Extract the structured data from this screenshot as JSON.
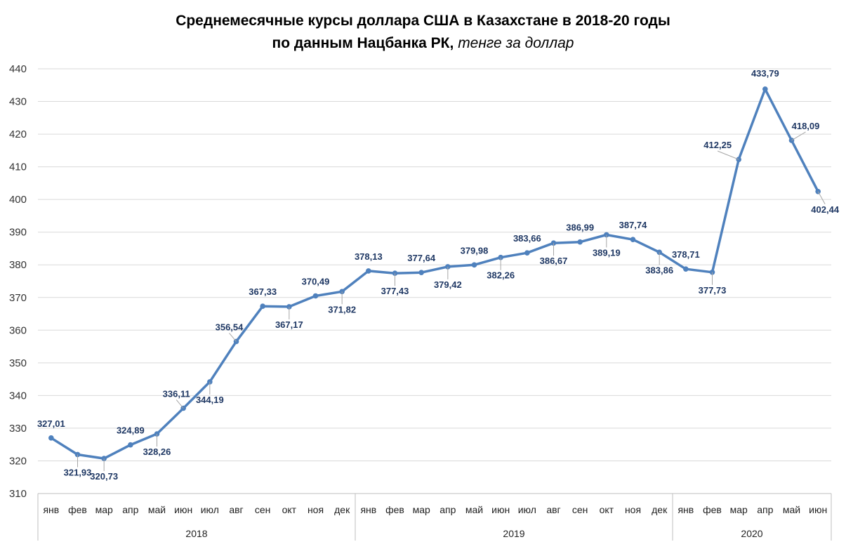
{
  "chart_data": {
    "type": "line",
    "title_line1": "Среднемесячные курсы доллара США в Казахстане в 2018-20 годы",
    "title_line2_bold": "по данным Нацбанка РК,",
    "title_line2_italic": "тенге за доллар",
    "ylim": [
      310,
      440
    ],
    "yticks": [
      "310",
      "320",
      "330",
      "340",
      "350",
      "360",
      "370",
      "380",
      "390",
      "400",
      "410",
      "420",
      "430",
      "440"
    ],
    "grid": true,
    "line_color": "#4f81bd",
    "label_color": "#1f3864",
    "categories": [
      "янв",
      "фев",
      "мар",
      "апр",
      "май",
      "июн",
      "июл",
      "авг",
      "сен",
      "окт",
      "ноя",
      "дек",
      "янв",
      "фев",
      "мар",
      "апр",
      "май",
      "июн",
      "июл",
      "авг",
      "сен",
      "окт",
      "ноя",
      "дек",
      "янв",
      "фев",
      "мар",
      "апр",
      "май",
      "июн"
    ],
    "groups": [
      {
        "name": "2018",
        "count": 12
      },
      {
        "name": "2019",
        "count": 12
      },
      {
        "name": "2020",
        "count": 6
      }
    ],
    "series": [
      {
        "values": [
          327.01,
          321.93,
          320.73,
          324.89,
          328.26,
          336.11,
          344.19,
          356.54,
          367.33,
          367.17,
          370.49,
          371.82,
          378.13,
          377.43,
          377.64,
          379.42,
          379.98,
          382.26,
          383.66,
          386.67,
          386.99,
          389.19,
          387.74,
          383.86,
          378.71,
          377.73,
          412.25,
          433.79,
          418.09,
          402.44
        ],
        "labels": [
          "327,01",
          "321,93",
          "320,73",
          "324,89",
          "328,26",
          "336,11",
          "344,19",
          "356,54",
          "367,33",
          "367,17",
          "370,49",
          "371,82",
          "378,13",
          "377,43",
          "377,64",
          "379,42",
          "379,98",
          "382,26",
          "383,66",
          "386,67",
          "386,99",
          "389,19",
          "387,74",
          "383,86",
          "378,71",
          "377,73",
          "412,25",
          "433,79",
          "418,09",
          "402,44"
        ]
      }
    ]
  }
}
